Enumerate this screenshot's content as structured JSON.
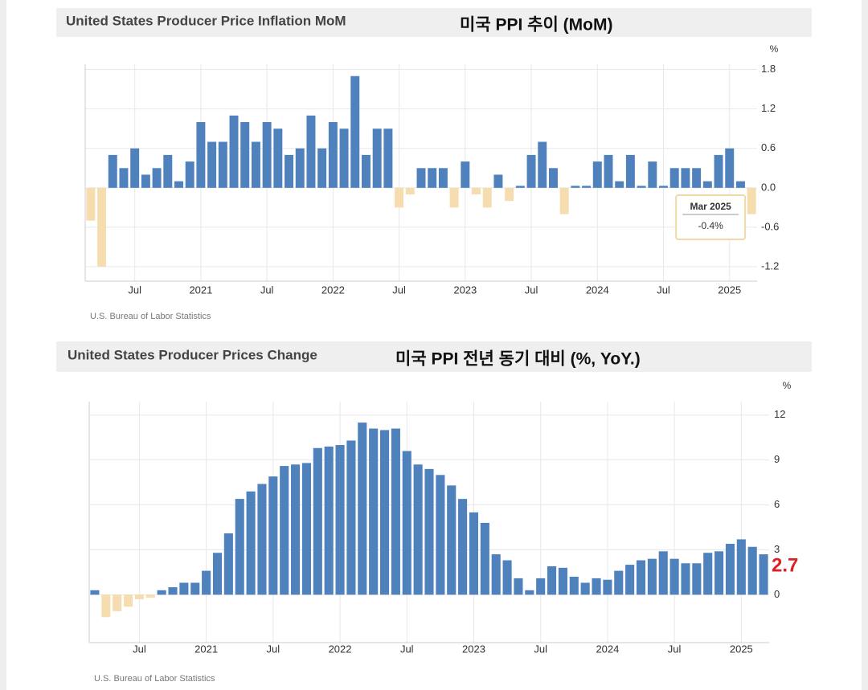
{
  "chart_data": [
    {
      "type": "bar",
      "title": "United States Producer Price Inflation MoM",
      "subtitle": "미국 PPI 추이 (MoM)",
      "unit": "%",
      "source": "U.S. Bureau of Labor Statistics",
      "categories": [
        null,
        null,
        null,
        null,
        "Jul",
        null,
        null,
        null,
        null,
        null,
        "2021",
        null,
        null,
        null,
        null,
        null,
        "Jul",
        null,
        null,
        null,
        null,
        null,
        "2022",
        null,
        null,
        null,
        null,
        null,
        "Jul",
        null,
        null,
        null,
        null,
        null,
        "2023",
        null,
        null,
        null,
        null,
        null,
        "Jul",
        null,
        null,
        null,
        null,
        null,
        "2024",
        null,
        null,
        null,
        null,
        null,
        "Jul",
        null,
        null,
        null,
        null,
        null,
        "2025",
        null,
        null
      ],
      "values": [
        -0.5,
        -1.2,
        0.5,
        0.3,
        0.6,
        0.2,
        0.3,
        0.5,
        0.1,
        0.4,
        1.0,
        0.7,
        0.7,
        1.1,
        1.0,
        0.7,
        1.0,
        0.9,
        0.5,
        0.6,
        1.1,
        0.6,
        1.0,
        0.9,
        1.7,
        0.5,
        0.9,
        0.9,
        -0.3,
        -0.1,
        0.3,
        0.3,
        0.3,
        -0.3,
        0.4,
        -0.1,
        -0.3,
        0.2,
        -0.2,
        0.03,
        0.5,
        0.7,
        0.3,
        -0.4,
        0.03,
        0.03,
        0.4,
        0.5,
        0.1,
        0.5,
        0.03,
        0.4,
        0.03,
        0.3,
        0.3,
        0.3,
        0.1,
        0.5,
        0.6,
        0.1,
        -0.4
      ],
      "color": "#4f81bd",
      "negative_color": "#f5ddb0",
      "ylim": [
        -1.42,
        1.88
      ],
      "yticks": [
        {
          "value": -1.2,
          "label": "-1.2"
        },
        {
          "value": -0.6,
          "label": "-0.6"
        },
        {
          "value": 0,
          "label": "0.0"
        },
        0.6,
        1.2,
        1.8
      ],
      "grid": true,
      "tooltip": {
        "title": "Mar 2025",
        "text": "-0.4%"
      }
    },
    {
      "type": "bar",
      "title": "United States Producer Prices Change",
      "subtitle": "미국 PPI 전년 동기 대비 (%, YoY.)",
      "unit": "%",
      "source": "U.S. Bureau of Labor Statistics",
      "categories": [
        null,
        null,
        null,
        null,
        "Jul",
        null,
        null,
        null,
        null,
        null,
        "2021",
        null,
        null,
        null,
        null,
        null,
        "Jul",
        null,
        null,
        null,
        null,
        null,
        "2022",
        null,
        null,
        null,
        null,
        null,
        "Jul",
        null,
        null,
        null,
        null,
        null,
        "2023",
        null,
        null,
        null,
        null,
        null,
        "Jul",
        null,
        null,
        null,
        null,
        null,
        "2024",
        null,
        null,
        null,
        null,
        null,
        "Jul",
        null,
        null,
        null,
        null,
        null,
        "2025",
        null,
        null
      ],
      "values": [
        0.3,
        -1.5,
        -1.1,
        -0.8,
        -0.3,
        -0.2,
        0.3,
        0.5,
        0.8,
        0.8,
        1.6,
        2.8,
        4.1,
        6.4,
        6.9,
        7.4,
        7.9,
        8.6,
        8.7,
        8.8,
        9.8,
        9.9,
        10.0,
        10.3,
        11.5,
        11.1,
        11.0,
        11.1,
        9.6,
        8.7,
        8.4,
        8.0,
        7.3,
        6.4,
        5.5,
        4.8,
        2.7,
        2.3,
        1.1,
        0.3,
        1.1,
        1.9,
        1.8,
        1.2,
        0.8,
        1.1,
        1.0,
        1.6,
        2.0,
        2.3,
        2.4,
        2.9,
        2.4,
        2.1,
        2.1,
        2.8,
        2.9,
        3.4,
        3.7,
        3.2,
        2.7
      ],
      "color": "#4f81bd",
      "negative_color": "#f5ddb0",
      "ylim": [
        -3.2,
        12.9
      ],
      "yticks": [
        0,
        3,
        6,
        9,
        12
      ],
      "grid": true,
      "annotation": "2.7"
    }
  ]
}
